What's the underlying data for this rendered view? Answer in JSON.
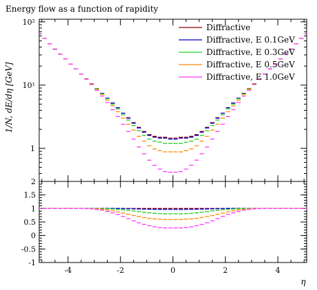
{
  "chart_data": [
    {
      "type": "line",
      "title": "Energy flow as a function of rapidity",
      "xlabel": "",
      "ylabel": "1/N, dE/dη [GeV]",
      "yscale": "log",
      "xlim": [
        -5.1,
        5.1
      ],
      "ylim": [
        0.3,
        110
      ],
      "yticks": [
        1,
        10,
        100
      ],
      "ytick_labels": [
        "1",
        "10¹",
        "10²"
      ],
      "legend_position": "top-right",
      "eta": [
        -5.1,
        -4.9,
        -4.7,
        -4.5,
        -4.3,
        -4.1,
        -3.9,
        -3.7,
        -3.5,
        -3.3,
        -3.1,
        -2.9,
        -2.7,
        -2.5,
        -2.3,
        -2.1,
        -1.9,
        -1.7,
        -1.5,
        -1.3,
        -1.1,
        -0.9,
        -0.7,
        -0.5,
        -0.3,
        -0.1,
        0.1,
        0.3,
        0.5,
        0.7,
        0.9,
        1.1,
        1.3,
        1.5,
        1.7,
        1.9,
        2.1,
        2.3,
        2.5,
        2.7,
        2.9,
        3.1,
        3.3,
        3.5,
        3.7,
        3.9,
        4.1,
        4.3,
        4.5,
        4.7,
        4.9,
        5.1
      ],
      "series": [
        {
          "name": "Diffractive",
          "color": "#8b0000",
          "values": [
            65,
            55,
            45,
            37,
            31,
            26,
            21.5,
            18,
            15,
            12.5,
            10.5,
            8.8,
            7.4,
            6.2,
            5.2,
            4.4,
            3.6,
            3.05,
            2.55,
            2.15,
            1.85,
            1.65,
            1.55,
            1.5,
            1.5,
            1.45,
            1.45,
            1.5,
            1.5,
            1.55,
            1.65,
            1.85,
            2.15,
            2.55,
            3.05,
            3.6,
            4.4,
            5.2,
            6.2,
            7.4,
            8.8,
            10.5,
            12.5,
            15,
            18,
            21.5,
            26,
            31,
            37,
            45,
            55,
            65
          ]
        },
        {
          "name": "Diffractive, E 0.1GeV",
          "color": "#0000cc",
          "values": [
            65,
            55,
            45,
            37,
            31,
            26,
            21.5,
            18,
            15,
            12.5,
            10.5,
            8.8,
            7.4,
            6.2,
            5.2,
            4.4,
            3.6,
            3.0,
            2.5,
            2.1,
            1.8,
            1.6,
            1.5,
            1.45,
            1.45,
            1.4,
            1.4,
            1.45,
            1.45,
            1.5,
            1.6,
            1.8,
            2.1,
            2.5,
            3.0,
            3.6,
            4.4,
            5.2,
            6.2,
            7.4,
            8.8,
            10.5,
            12.5,
            15,
            18,
            21.5,
            26,
            31,
            37,
            45,
            55,
            65
          ]
        },
        {
          "name": "Diffractive, E 0.3GeV",
          "color": "#22cc22",
          "values": [
            65,
            55,
            45,
            37,
            31,
            26,
            21.5,
            18,
            15,
            12.5,
            10.5,
            8.8,
            7.3,
            6.1,
            5.0,
            4.2,
            3.4,
            2.8,
            2.3,
            1.9,
            1.6,
            1.4,
            1.3,
            1.25,
            1.2,
            1.2,
            1.2,
            1.2,
            1.25,
            1.3,
            1.4,
            1.6,
            1.9,
            2.3,
            2.8,
            3.4,
            4.2,
            5.0,
            6.1,
            7.3,
            8.8,
            10.5,
            12.5,
            15,
            18,
            21.5,
            26,
            31,
            37,
            45,
            55,
            65
          ]
        },
        {
          "name": "Diffractive, E 0.5GeV",
          "color": "#ff8800",
          "values": [
            65,
            55,
            45,
            37,
            31,
            26,
            21.5,
            18,
            15,
            12.5,
            10.4,
            8.6,
            7.1,
            5.8,
            4.7,
            3.8,
            3.0,
            2.4,
            1.95,
            1.55,
            1.3,
            1.1,
            0.98,
            0.92,
            0.88,
            0.88,
            0.88,
            0.88,
            0.92,
            0.98,
            1.1,
            1.3,
            1.55,
            1.95,
            2.4,
            3.0,
            3.8,
            4.7,
            5.8,
            7.1,
            8.6,
            10.4,
            12.5,
            15,
            18,
            21.5,
            26,
            31,
            37,
            45,
            55,
            65
          ]
        },
        {
          "name": "Diffractive, E 1.0GeV",
          "color": "#ff33ff",
          "values": [
            65,
            55,
            45,
            37,
            31,
            26,
            21.5,
            18,
            15,
            12.4,
            10.2,
            8.3,
            6.7,
            5.3,
            4.1,
            3.2,
            2.4,
            1.85,
            1.4,
            1.05,
            0.82,
            0.65,
            0.54,
            0.47,
            0.43,
            0.42,
            0.42,
            0.43,
            0.47,
            0.54,
            0.65,
            0.82,
            1.05,
            1.4,
            1.85,
            2.4,
            3.2,
            4.1,
            5.3,
            6.7,
            8.3,
            10.2,
            12.4,
            15,
            18,
            21.5,
            26,
            31,
            37,
            45,
            55,
            65
          ]
        }
      ]
    },
    {
      "type": "line",
      "title": "",
      "xlabel": "η",
      "ylabel": "",
      "xlim": [
        -5.1,
        5.1
      ],
      "ylim": [
        -1,
        2
      ],
      "xticks": [
        -4,
        -2,
        0,
        2,
        4
      ],
      "xtick_labels": [
        "-4",
        "-2",
        "0",
        "2",
        "4"
      ],
      "yticks": [
        -1,
        -0.5,
        0,
        0.5,
        1,
        1.5,
        2
      ],
      "ytick_labels": [
        "-1",
        "-0.5",
        "0",
        "0.5",
        "1",
        "1.5",
        "2"
      ],
      "eta": [
        -5.1,
        -4.9,
        -4.7,
        -4.5,
        -4.3,
        -4.1,
        -3.9,
        -3.7,
        -3.5,
        -3.3,
        -3.1,
        -2.9,
        -2.7,
        -2.5,
        -2.3,
        -2.1,
        -1.9,
        -1.7,
        -1.5,
        -1.3,
        -1.1,
        -0.9,
        -0.7,
        -0.5,
        -0.3,
        -0.1,
        0.1,
        0.3,
        0.5,
        0.7,
        0.9,
        1.1,
        1.3,
        1.5,
        1.7,
        1.9,
        2.1,
        2.3,
        2.5,
        2.7,
        2.9,
        3.1,
        3.3,
        3.5,
        3.7,
        3.9,
        4.1,
        4.3,
        4.5,
        4.7,
        4.9,
        5.1
      ],
      "series": [
        {
          "name": "Diffractive",
          "color": "#8b0000",
          "values": [
            1,
            1,
            1,
            1,
            1,
            1,
            1,
            1,
            1,
            1,
            1,
            1,
            1,
            1,
            1,
            1,
            1,
            1,
            1,
            1,
            1,
            1,
            1,
            1,
            1,
            1,
            1,
            1,
            1,
            1,
            1,
            1,
            1,
            1,
            1,
            1,
            1,
            1,
            1,
            1,
            1,
            1,
            1,
            1,
            1,
            1,
            1,
            1,
            1,
            1,
            1,
            1
          ]
        },
        {
          "name": "Diffractive, E 0.1GeV",
          "color": "#0000cc",
          "values": [
            1,
            1,
            1,
            1,
            1,
            1,
            1,
            1,
            1,
            1,
            1,
            1,
            1,
            1,
            1,
            1,
            0.995,
            0.99,
            0.985,
            0.98,
            0.975,
            0.97,
            0.968,
            0.966,
            0.965,
            0.965,
            0.965,
            0.965,
            0.966,
            0.968,
            0.97,
            0.975,
            0.98,
            0.985,
            0.99,
            0.995,
            1,
            1,
            1,
            1,
            1,
            1,
            1,
            1,
            1,
            1,
            1,
            1,
            1,
            1,
            1,
            1
          ]
        },
        {
          "name": "Diffractive, E 0.3GeV",
          "color": "#22cc22",
          "values": [
            1,
            1,
            1,
            1,
            1,
            1,
            1,
            1,
            1,
            1,
            1,
            1,
            0.995,
            0.99,
            0.98,
            0.965,
            0.95,
            0.93,
            0.91,
            0.885,
            0.86,
            0.84,
            0.82,
            0.81,
            0.8,
            0.8,
            0.8,
            0.8,
            0.81,
            0.82,
            0.84,
            0.86,
            0.885,
            0.91,
            0.93,
            0.95,
            0.965,
            0.98,
            0.99,
            0.995,
            1,
            1,
            1,
            1,
            1,
            1,
            1,
            1,
            1,
            1,
            1,
            1
          ]
        },
        {
          "name": "Diffractive, E 0.5GeV",
          "color": "#ff8800",
          "values": [
            1,
            1,
            1,
            1,
            1,
            1,
            1,
            1,
            1,
            1,
            0.995,
            0.985,
            0.97,
            0.945,
            0.91,
            0.87,
            0.83,
            0.785,
            0.74,
            0.7,
            0.665,
            0.635,
            0.615,
            0.6,
            0.59,
            0.59,
            0.59,
            0.59,
            0.6,
            0.615,
            0.635,
            0.665,
            0.7,
            0.74,
            0.785,
            0.83,
            0.87,
            0.91,
            0.945,
            0.97,
            0.985,
            0.995,
            1,
            1,
            1,
            1,
            1,
            1,
            1,
            1,
            1,
            1
          ]
        },
        {
          "name": "Diffractive, E 1.0GeV",
          "color": "#ff33ff",
          "values": [
            1,
            1,
            1,
            1,
            1,
            1,
            1,
            1,
            1,
            0.995,
            0.985,
            0.965,
            0.935,
            0.89,
            0.835,
            0.775,
            0.705,
            0.62,
            0.54,
            0.47,
            0.41,
            0.36,
            0.32,
            0.295,
            0.28,
            0.28,
            0.28,
            0.28,
            0.295,
            0.32,
            0.36,
            0.41,
            0.47,
            0.54,
            0.62,
            0.705,
            0.775,
            0.835,
            0.89,
            0.935,
            0.965,
            0.985,
            0.995,
            1,
            1,
            1,
            1,
            1,
            1,
            1,
            1,
            1
          ]
        }
      ]
    }
  ]
}
